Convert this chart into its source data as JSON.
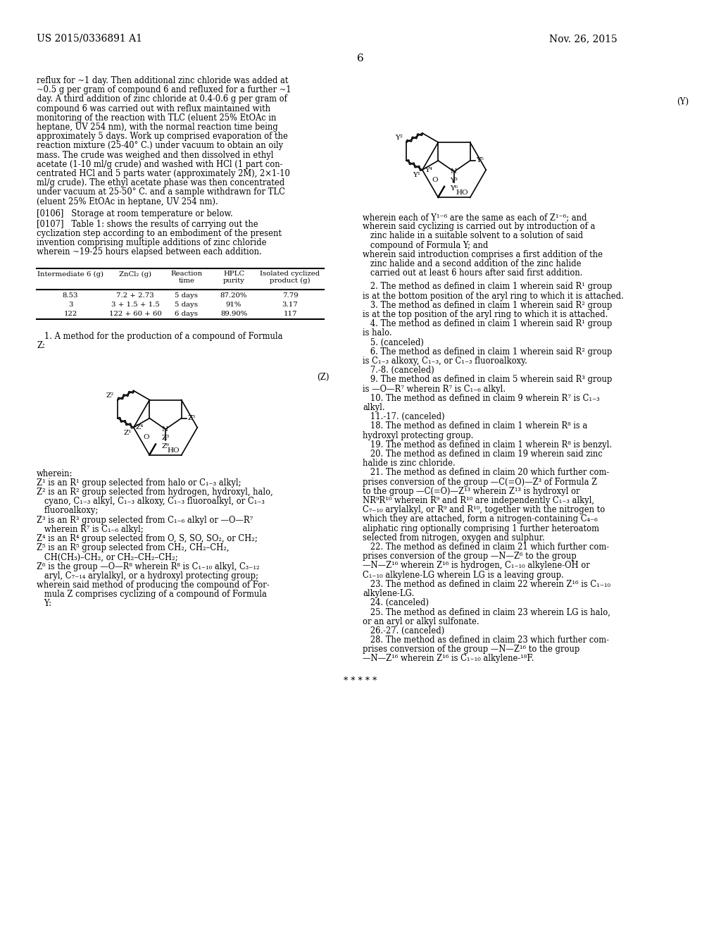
{
  "page_number": "6",
  "patent_number": "US 2015/0336891 A1",
  "patent_date": "Nov. 26, 2015",
  "background_color": "#ffffff",
  "text_color": "#000000",
  "left_column_text": [
    "reflux for ~1 day. Then additional zinc chloride was added at",
    "~0.5 g per gram of compound 6 and refluxed for a further ~1",
    "day. A third addition of zinc chloride at 0.4-0.6 g per gram of",
    "compound 6 was carried out with reflux maintained with",
    "monitoring of the reaction with TLC (eluent 25% EtOAc in",
    "heptane, UV 254 nm), with the normal reaction time being",
    "approximately 5 days. Work up comprised evaporation of the",
    "reaction mixture (25-40° C.) under vacuum to obtain an oily",
    "mass. The crude was weighed and then dissolved in ethyl",
    "acetate (1-10 ml/g crude) and washed with HCl (1 part con-",
    "centrated HCl and 5 parts water (approximately 2M), 2×1-10",
    "ml/g crude). The ethyl acetate phase was then concentrated",
    "under vacuum at 25-50° C. and a sample withdrawn for TLC",
    "(eluent 25% EtOAc in heptane, UV 254 nm)."
  ],
  "paragraph_0106": "[0106]   Storage at room temperature or below.",
  "paragraph_0107_lines": [
    "[0107]   Table 1: shows the results of carrying out the",
    "cyclization step according to an embodiment of the present",
    "invention comprising multiple additions of zinc chloride",
    "wherein ~19-25 hours elapsed between each addition."
  ],
  "table_rows": [
    [
      "8.53",
      "7.2 + 2.73",
      "5 days",
      "87.20%",
      "7.79"
    ],
    [
      "3",
      "3 + 1.5 + 1.5",
      "5 days",
      "91%",
      "3.17"
    ],
    [
      "122",
      "122 + 60 + 60",
      "6 days",
      "89.90%",
      "117"
    ]
  ],
  "wherein_z_lines": [
    "wherein:",
    "Z¹ is an R¹ group selected from halo or C₁₋₃ alkyl;",
    "Z² is an R² group selected from hydrogen, hydroxyl, halo,",
    "   cyano, C₁₋₃ alkyl, C₁₋₃ alkoxy, C₁₋₃ fluoroalkyl, or C₁₋₃",
    "   fluoroalkoxy;",
    "Z³ is an R³ group selected from C₁₋₆ alkyl or —O—R⁷",
    "   wherein R⁷ is C₁₋₆ alkyl;",
    "Z⁴ is an R⁴ group selected from O, S, SO, SO₂, or CH₂;",
    "Z⁵ is an R⁵ group selected from CH₂, CH₂–CH₂,",
    "   CH(CH₃)–CH₂, or CH₂–CH₂–CH₂;",
    "Z⁶ is the group —O—R⁸ wherein R⁸ is C₁₋₁₀ alkyl, C₃₋₁₂",
    "   aryl, C₇₋₁₄ arylalkyl, or a hydroxyl protecting group;",
    "wherein said method of producing the compound of For-",
    "   mula Z comprises cyclizing of a compound of Formula",
    "   Y:"
  ],
  "right_col_above_y": [
    "wherein each of Y¹⁻⁶ are the same as each of Z¹⁻⁶; and",
    "wherein said cyclizing is carried out by introduction of a",
    "   zinc halide in a suitable solvent to a solution of said",
    "   compound of Formula Y; and",
    "wherein said introduction comprises a first addition of the",
    "   zinc halide and a second addition of the zinc halide",
    "   carried out at least 6 hours after said first addition."
  ],
  "claims_text": [
    "   2. The method as defined in claim 1 wherein said R¹ group",
    "is at the bottom position of the aryl ring to which it is attached.",
    "   3. The method as defined in claim 1 wherein said R² group",
    "is at the top position of the aryl ring to which it is attached.",
    "   4. The method as defined in claim 1 wherein said R¹ group",
    "is halo.",
    "   5. (canceled)",
    "   6. The method as defined in claim 1 wherein said R² group",
    "is C₁₋₃ alkoxy, C₁₋₃, or C₁₋₃ fluoroalkoxy.",
    "   7.-8. (canceled)",
    "   9. The method as defined in claim 5 wherein said R³ group",
    "is —O—R⁷ wherein R⁷ is C₁₋₆ alkyl.",
    "   10. The method as defined in claim 9 wherein R⁷ is C₁₋₃",
    "alkyl.",
    "   11.-17. (canceled)",
    "   18. The method as defined in claim 1 wherein R⁸ is a",
    "hydroxyl protecting group.",
    "   19. The method as defined in claim 1 wherein R⁸ is benzyl.",
    "   20. The method as defined in claim 19 wherein said zinc",
    "halide is zinc chloride.",
    "   21. The method as defined in claim 20 which further com-",
    "prises conversion of the group —C(=O)—Z³ of Formula Z",
    "to the group —C(=O)—Z¹³ wherein Z¹³ is hydroxyl or",
    "NR⁹R¹⁰ wherein R⁹ and R¹⁰ are independently C₁₋₃ alkyl,",
    "C₇₋₁₀ arylalkyl, or R⁹ and R¹⁰, together with the nitrogen to",
    "which they are attached, form a nitrogen-containing C₄₋₆",
    "aliphatic ring optionally comprising 1 further heteroatom",
    "selected from nitrogen, oxygen and sulphur.",
    "   22. The method as defined in claim 21 which further com-",
    "prises conversion of the group —N—Z⁶ to the group",
    "—N—Z¹⁶ wherein Z¹⁶ is hydrogen, C₁₋₁₀ alkylene-OH or",
    "C₁₋₁₀ alkylene-LG wherein LG is a leaving group.",
    "   23. The method as defined in claim 22 wherein Z¹⁶ is C₁₋₁₀",
    "alkylene-LG.",
    "   24. (canceled)",
    "   25. The method as defined in claim 23 wherein LG is halo,",
    "or an aryl or alkyl sulfonate.",
    "   26.-27. (canceled)",
    "   28. The method as defined in claim 23 which further com-",
    "prises conversion of the group —N—Z¹⁶ to the group",
    "—N—Z¹⁶ wherein Z¹⁶ is C₁₋₁₀ alkylene-¹⁸F."
  ],
  "stars": "* * * * *"
}
